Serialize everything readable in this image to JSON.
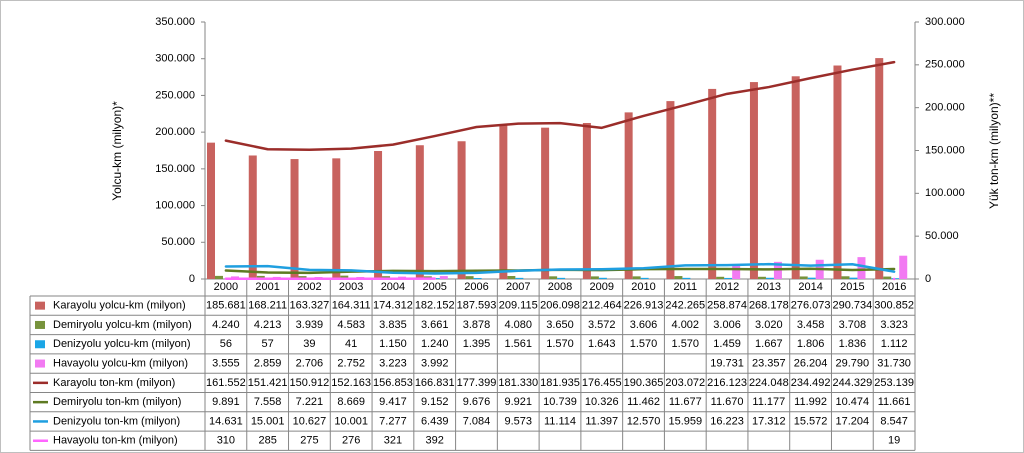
{
  "chart_data": {
    "type": "bar",
    "y_label": "Yolcu-km (milyon)*",
    "y2_label": "Yük ton-km (milyon)**",
    "categories": [
      "2000",
      "2001",
      "2002",
      "2003",
      "2004",
      "2005",
      "2006",
      "2007",
      "2008",
      "2009",
      "2010",
      "2011",
      "2012",
      "2013",
      "2014",
      "2015",
      "2016"
    ],
    "ylim": [
      0,
      350000
    ],
    "yticks": [
      {
        "value": 0,
        "label": "0"
      },
      {
        "value": 50000,
        "label": "50.000"
      },
      {
        "value": 100000,
        "label": "100.000"
      },
      {
        "value": 150000,
        "label": "150.000"
      },
      {
        "value": 200000,
        "label": "200.000"
      },
      {
        "value": 250000,
        "label": "250.000"
      },
      {
        "value": 300000,
        "label": "300.000"
      },
      {
        "value": 350000,
        "label": "350.000"
      }
    ],
    "y2lim": [
      0,
      300000
    ],
    "y2ticks": [
      {
        "value": 0,
        "label": "0"
      },
      {
        "value": 50000,
        "label": "50.000"
      },
      {
        "value": 100000,
        "label": "100.000"
      },
      {
        "value": 150000,
        "label": "150.000"
      },
      {
        "value": 200000,
        "label": "200.000"
      },
      {
        "value": 250000,
        "label": "250.000"
      },
      {
        "value": 300000,
        "label": "300.000"
      }
    ],
    "series": [
      {
        "name": "Karayolu yolcu-km (milyon)",
        "color": "#c8625e",
        "axis": "y",
        "values": [
          185681,
          168211,
          163327,
          164311,
          174312,
          182152,
          187593,
          209115,
          206098,
          212464,
          226913,
          242265,
          258874,
          268178,
          276073,
          290734,
          300852
        ],
        "value_labels": [
          "185.681",
          "168.211",
          "163.327",
          "164.311",
          "174.312",
          "182.152",
          "187.593",
          "209.115",
          "206.098",
          "212.464",
          "226.913",
          "242.265",
          "258.874",
          "268.178",
          "276.073",
          "290.734",
          "300.852"
        ]
      },
      {
        "name": "Demiryolu yolcu-km (milyon)",
        "color": "#77933c",
        "axis": "y",
        "values": [
          4240,
          4213,
          3939,
          4583,
          3835,
          3661,
          3878,
          4080,
          3650,
          3572,
          3606,
          4002,
          3006,
          3020,
          3458,
          3708,
          3323
        ],
        "value_labels": [
          "4.240",
          "4.213",
          "3.939",
          "4.583",
          "3.835",
          "3.661",
          "3.878",
          "4.080",
          "3.650",
          "3.572",
          "3.606",
          "4.002",
          "3.006",
          "3.020",
          "3.458",
          "3.708",
          "3.323"
        ]
      },
      {
        "name": "Denizyolu yolcu-km (milyon)",
        "color": "#1ba6e6",
        "axis": "y",
        "values": [
          56,
          57,
          39,
          41,
          1150,
          1240,
          1395,
          1561,
          1570,
          1643,
          1570,
          1570,
          1459,
          1667,
          1806,
          1836,
          1112
        ],
        "value_labels": [
          "56",
          "57",
          "39",
          "41",
          "1.150",
          "1.240",
          "1.395",
          "1.561",
          "1.570",
          "1.643",
          "1.570",
          "1.570",
          "1.459",
          "1.667",
          "1.806",
          "1.836",
          "1.112"
        ]
      },
      {
        "name": "Havayolu yolcu-km (milyon)",
        "color": "#f27af2",
        "axis": "y",
        "values": [
          3555,
          2859,
          2706,
          2752,
          3223,
          3992,
          null,
          null,
          null,
          null,
          null,
          null,
          19731,
          23357,
          26204,
          29790,
          31730
        ],
        "value_labels": [
          "3.555",
          "2.859",
          "2.706",
          "2.752",
          "3.223",
          "3.992",
          null,
          null,
          null,
          null,
          null,
          null,
          "19.731",
          "23.357",
          "26.204",
          "29.790",
          "31.730"
        ]
      },
      {
        "name": "Karayolu ton-km (milyon)",
        "color": "#9b2d2a",
        "axis": "y2",
        "values": [
          161552,
          151421,
          150912,
          152163,
          156853,
          166831,
          177399,
          181330,
          181935,
          176455,
          190365,
          203072,
          216123,
          224048,
          234492,
          244329,
          253139
        ],
        "value_labels": [
          "161.552",
          "151.421",
          "150.912",
          "152.163",
          "156.853",
          "166.831",
          "177.399",
          "181.330",
          "181.935",
          "176.455",
          "190.365",
          "203.072",
          "216.123",
          "224.048",
          "234.492",
          "244.329",
          "253.139"
        ]
      },
      {
        "name": "Demiryolu ton-km (milyon)",
        "color": "#5e7a22",
        "axis": "y2",
        "values": [
          9891,
          7558,
          7221,
          8669,
          9417,
          9152,
          9676,
          9921,
          10739,
          10326,
          11462,
          11677,
          11670,
          11177,
          11992,
          10474,
          11661
        ],
        "value_labels": [
          "9.891",
          "7.558",
          "7.221",
          "8.669",
          "9.417",
          "9.152",
          "9.676",
          "9.921",
          "10.739",
          "10.326",
          "11.462",
          "11.677",
          "11.670",
          "11.177",
          "11.992",
          "10.474",
          "11.661"
        ]
      },
      {
        "name": "Denizyolu ton-km (milyon)",
        "color": "#1f9fe0",
        "axis": "y2",
        "values": [
          14631,
          15001,
          10627,
          10001,
          7277,
          6439,
          7084,
          9573,
          11114,
          11397,
          12570,
          15959,
          16223,
          17312,
          15572,
          17204,
          8547
        ],
        "value_labels": [
          "14.631",
          "15.001",
          "10.627",
          "10.001",
          "7.277",
          "6.439",
          "7.084",
          "9.573",
          "11.114",
          "11.397",
          "12.570",
          "15.959",
          "16.223",
          "17.312",
          "15.572",
          "17.204",
          "8.547"
        ]
      },
      {
        "name": "Havayolu ton-km (milyon)",
        "color": "#ff66ff",
        "axis": "y2",
        "values": [
          310,
          285,
          275,
          276,
          321,
          392,
          null,
          null,
          null,
          null,
          null,
          null,
          null,
          null,
          null,
          null,
          19
        ],
        "value_labels": [
          "310",
          "285",
          "275",
          "276",
          "321",
          "392",
          null,
          null,
          null,
          null,
          null,
          null,
          null,
          null,
          null,
          null,
          "19"
        ]
      }
    ]
  }
}
